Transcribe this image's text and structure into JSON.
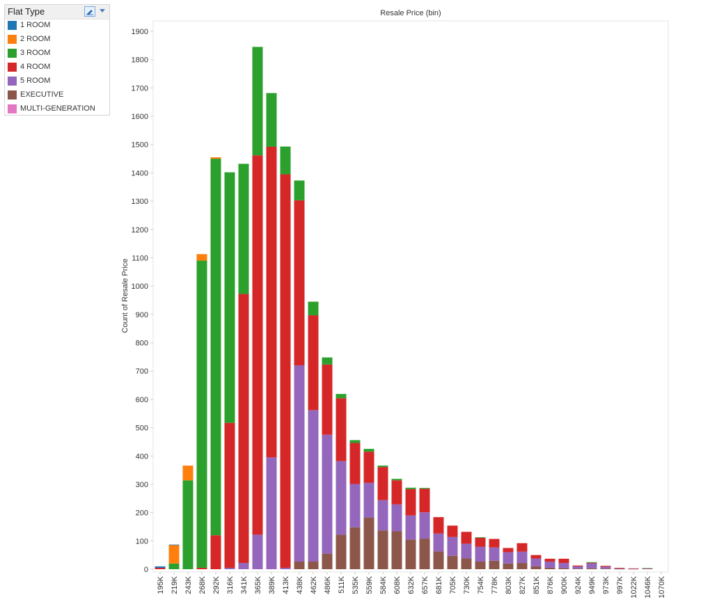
{
  "legend": {
    "title": "Flat Type",
    "items": [
      {
        "label": "1 ROOM",
        "color": "#1f77b4"
      },
      {
        "label": "2 ROOM",
        "color": "#ff7f0e"
      },
      {
        "label": "3 ROOM",
        "color": "#2ca02c"
      },
      {
        "label": "4 ROOM",
        "color": "#d62728"
      },
      {
        "label": "5 ROOM",
        "color": "#9467bd"
      },
      {
        "label": "EXECUTIVE",
        "color": "#8c564b"
      },
      {
        "label": "MULTI-GENERATION",
        "color": "#e377c2"
      }
    ],
    "edit_icon": "pencil-icon",
    "menu_icon": "chevron-down-icon"
  },
  "chart_data": {
    "type": "bar",
    "stacked": true,
    "title": "Resale Price (bin)",
    "xlabel": "",
    "ylabel": "Count of Resale Price",
    "ylim": [
      0,
      1950
    ],
    "yticks": [
      0,
      100,
      200,
      300,
      400,
      500,
      600,
      700,
      800,
      900,
      1000,
      1100,
      1200,
      1300,
      1400,
      1500,
      1600,
      1700,
      1800,
      1900
    ],
    "grid": false,
    "legend_position": "top-left",
    "categories": [
      "195K",
      "219K",
      "243K",
      "268K",
      "292K",
      "316K",
      "341K",
      "365K",
      "389K",
      "413K",
      "438K",
      "462K",
      "486K",
      "511K",
      "535K",
      "559K",
      "584K",
      "608K",
      "632K",
      "657K",
      "681K",
      "705K",
      "730K",
      "754K",
      "778K",
      "803K",
      "827K",
      "851K",
      "876K",
      "900K",
      "924K",
      "949K",
      "973K",
      "997K",
      "1022K",
      "1046K",
      "1070K"
    ],
    "series": [
      {
        "name": "EXECUTIVE",
        "color": "#8c564b",
        "values": [
          0,
          0,
          0,
          0,
          0,
          0,
          0,
          0,
          0,
          0,
          27,
          27,
          55,
          122,
          148,
          182,
          137,
          134,
          105,
          108,
          63,
          47,
          38,
          27,
          30,
          20,
          22,
          10,
          5,
          4,
          2,
          3,
          2,
          1,
          1,
          0,
          0
        ]
      },
      {
        "name": "5 ROOM",
        "color": "#9467bd",
        "values": [
          0,
          0,
          0,
          0,
          0,
          5,
          22,
          122,
          395,
          5,
          693,
          535,
          420,
          260,
          153,
          123,
          107,
          95,
          85,
          93,
          63,
          67,
          52,
          52,
          47,
          40,
          40,
          28,
          22,
          18,
          8,
          18,
          7,
          2,
          1,
          2,
          0
        ]
      },
      {
        "name": "4 ROOM",
        "color": "#d62728",
        "values": [
          5,
          0,
          0,
          5,
          120,
          512,
          950,
          1340,
          1097,
          1390,
          583,
          335,
          248,
          222,
          145,
          110,
          117,
          85,
          93,
          83,
          58,
          40,
          42,
          32,
          30,
          15,
          30,
          12,
          10,
          15,
          3,
          2,
          3,
          2,
          1,
          1,
          0
        ]
      },
      {
        "name": "3 ROOM",
        "color": "#2ca02c",
        "values": [
          0,
          20,
          314,
          1085,
          1330,
          885,
          460,
          383,
          190,
          98,
          70,
          48,
          25,
          15,
          10,
          10,
          5,
          5,
          5,
          3,
          0,
          0,
          0,
          2,
          0,
          0,
          0,
          0,
          0,
          0,
          0,
          2,
          0,
          0,
          0,
          1,
          0
        ]
      },
      {
        "name": "2 ROOM",
        "color": "#ff7f0e",
        "values": [
          0,
          65,
          52,
          23,
          5,
          0,
          0,
          0,
          0,
          0,
          0,
          0,
          0,
          0,
          0,
          0,
          0,
          0,
          0,
          0,
          0,
          0,
          0,
          0,
          0,
          0,
          0,
          0,
          0,
          0,
          0,
          0,
          0,
          0,
          0,
          0,
          0
        ]
      },
      {
        "name": "1 ROOM",
        "color": "#1f77b4",
        "values": [
          5,
          2,
          0,
          0,
          0,
          0,
          0,
          0,
          0,
          0,
          0,
          0,
          0,
          0,
          0,
          0,
          0,
          0,
          0,
          0,
          0,
          0,
          0,
          0,
          0,
          0,
          0,
          0,
          0,
          0,
          0,
          0,
          0,
          0,
          0,
          0,
          0
        ]
      },
      {
        "name": "MULTI-GENERATION",
        "color": "#e377c2",
        "values": [
          0,
          0,
          0,
          0,
          0,
          0,
          0,
          0,
          0,
          0,
          0,
          0,
          0,
          0,
          0,
          0,
          0,
          0,
          0,
          0,
          0,
          0,
          0,
          0,
          0,
          0,
          0,
          0,
          0,
          0,
          0,
          0,
          0,
          0,
          0,
          0,
          0
        ]
      }
    ]
  }
}
